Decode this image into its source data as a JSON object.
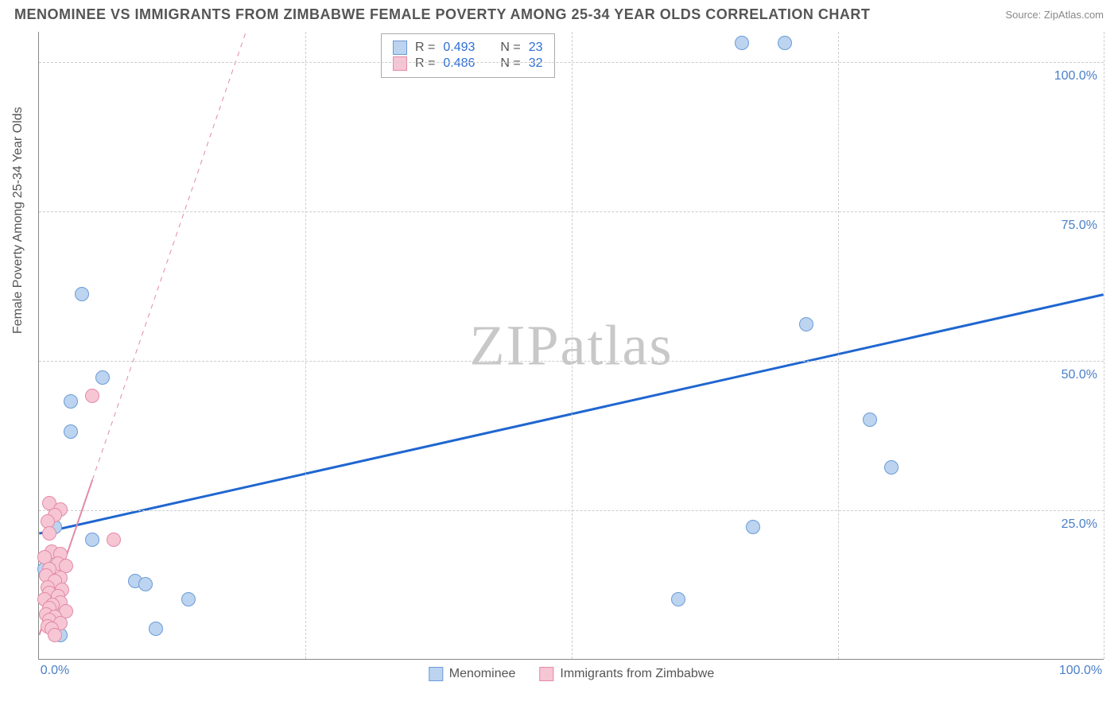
{
  "title": "MENOMINEE VS IMMIGRANTS FROM ZIMBABWE FEMALE POVERTY AMONG 25-34 YEAR OLDS CORRELATION CHART",
  "source": "Source: ZipAtlas.com",
  "watermark": "ZIPatlas",
  "y_axis_label": "Female Poverty Among 25-34 Year Olds",
  "chart": {
    "type": "scatter",
    "xlim": [
      0,
      100
    ],
    "ylim": [
      0,
      105
    ],
    "x_ticks": [
      0,
      25,
      50,
      75,
      100
    ],
    "y_ticks": [
      25,
      50,
      75,
      100
    ],
    "x_tick_labels": [
      "0.0%",
      "",
      "",
      "",
      "100.0%"
    ],
    "y_tick_labels": [
      "25.0%",
      "50.0%",
      "75.0%",
      "100.0%"
    ],
    "grid_color": "#cccccc",
    "background_color": "#ffffff",
    "point_radius": 9,
    "series": [
      {
        "name": "Menominee",
        "fill": "#bcd4ef",
        "stroke": "#6a9bd8",
        "points": [
          [
            66,
            103
          ],
          [
            70,
            103
          ],
          [
            72,
            56
          ],
          [
            78,
            40
          ],
          [
            80,
            32
          ],
          [
            67,
            22
          ],
          [
            60,
            10
          ],
          [
            4,
            61
          ],
          [
            6,
            47
          ],
          [
            3,
            43
          ],
          [
            3,
            38
          ],
          [
            1.5,
            22
          ],
          [
            5,
            20
          ],
          [
            1,
            17
          ],
          [
            9,
            13
          ],
          [
            10,
            12.5
          ],
          [
            14,
            10
          ],
          [
            2,
            8
          ],
          [
            1,
            6
          ],
          [
            1.5,
            5
          ],
          [
            11,
            5
          ],
          [
            2,
            4
          ],
          [
            0.5,
            15
          ]
        ],
        "regression": {
          "x1": 0,
          "y1": 21,
          "x2": 100,
          "y2": 61,
          "color": "#1f66d0",
          "width": 3
        }
      },
      {
        "name": "Immigrants from Zimbabwe",
        "fill": "#f6c6d4",
        "stroke": "#e38aa6",
        "points": [
          [
            5,
            44
          ],
          [
            1,
            26
          ],
          [
            2,
            25
          ],
          [
            1.5,
            24
          ],
          [
            0.8,
            23
          ],
          [
            1,
            21
          ],
          [
            7,
            20
          ],
          [
            1.2,
            18
          ],
          [
            2,
            17.5
          ],
          [
            0.5,
            17
          ],
          [
            1.8,
            16
          ],
          [
            2.5,
            15.5
          ],
          [
            1,
            15
          ],
          [
            0.7,
            14
          ],
          [
            2,
            13.5
          ],
          [
            1.5,
            13
          ],
          [
            0.8,
            12
          ],
          [
            2.2,
            11.5
          ],
          [
            1,
            11
          ],
          [
            1.8,
            10.5
          ],
          [
            0.5,
            10
          ],
          [
            2,
            9.5
          ],
          [
            1.3,
            9
          ],
          [
            1,
            8.5
          ],
          [
            2.5,
            8
          ],
          [
            0.7,
            7.5
          ],
          [
            1.5,
            7
          ],
          [
            1,
            6.5
          ],
          [
            2,
            6
          ],
          [
            0.8,
            5.5
          ],
          [
            1.2,
            5
          ],
          [
            1.5,
            4
          ]
        ],
        "regression": {
          "x1": 0,
          "y1": 4,
          "x2": 5,
          "y2": 30,
          "extend_x2": 30,
          "extend_y2": 160,
          "color": "#e38aa6",
          "width": 2,
          "dash_after": true
        }
      }
    ]
  },
  "stats_legend": {
    "rows": [
      {
        "swatch_fill": "#bcd4ef",
        "swatch_stroke": "#6a9bd8",
        "r": "0.493",
        "n": "23"
      },
      {
        "swatch_fill": "#f6c6d4",
        "swatch_stroke": "#e38aa6",
        "r": "0.486",
        "n": "32"
      }
    ],
    "r_label": "R =",
    "n_label": "N ="
  },
  "bottom_legend": [
    {
      "swatch_fill": "#bcd4ef",
      "swatch_stroke": "#6a9bd8",
      "label": "Menominee"
    },
    {
      "swatch_fill": "#f6c6d4",
      "swatch_stroke": "#e38aa6",
      "label": "Immigrants from Zimbabwe"
    }
  ]
}
